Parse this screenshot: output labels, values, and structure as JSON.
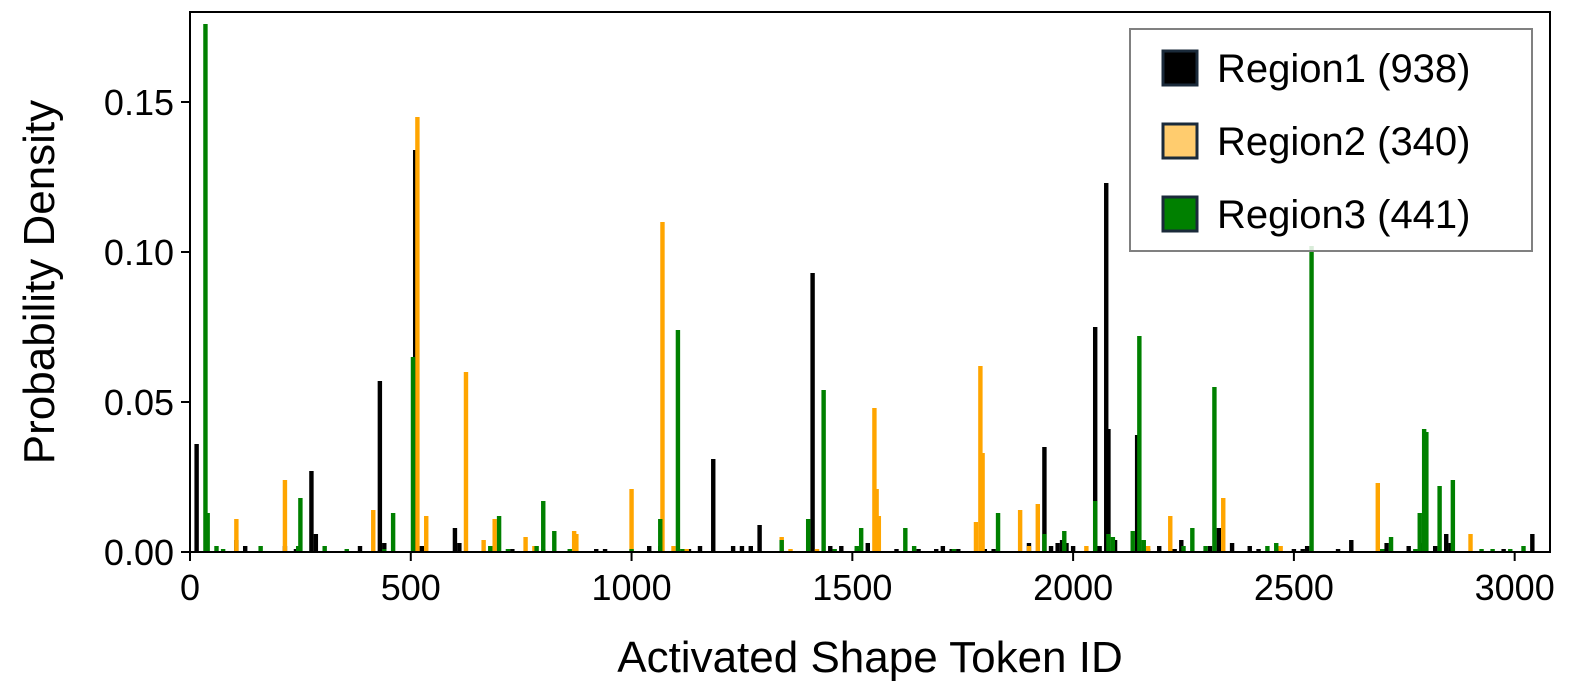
{
  "chart_data": {
    "type": "bar",
    "xlabel": "Activated Shape Token ID",
    "ylabel": "Probability Density",
    "xlim": [
      0,
      3080
    ],
    "ylim": [
      0,
      0.18
    ],
    "xticks": [
      0,
      500,
      1000,
      1500,
      2000,
      2500,
      3000
    ],
    "xtick_labels": [
      "0",
      "500",
      "1000",
      "1500",
      "2000",
      "2500",
      "3000"
    ],
    "yticks": [
      0,
      0.05,
      0.1,
      0.15
    ],
    "ytick_labels": [
      "0.00",
      "0.05",
      "0.10",
      "0.15"
    ],
    "grid": false,
    "legend_position": "top-right",
    "bar_width": 10,
    "series": [
      {
        "name": "Region1 (938)",
        "color": "#000000",
        "x": [
          15,
          105,
          125,
          215,
          240,
          275,
          285,
          385,
          430,
          440,
          510,
          525,
          600,
          610,
          730,
          800,
          920,
          940,
          1040,
          1065,
          1130,
          1155,
          1185,
          1230,
          1250,
          1270,
          1290,
          1410,
          1450,
          1475,
          1510,
          1535,
          1600,
          1650,
          1690,
          1705,
          1725,
          1740,
          1800,
          1820,
          1900,
          1935,
          1950,
          1965,
          1975,
          1985,
          2000,
          2050,
          2060,
          2075,
          2080,
          2095,
          2145,
          2170,
          2195,
          2230,
          2245,
          2310,
          2330,
          2360,
          2400,
          2420,
          2465,
          2500,
          2520,
          2530,
          2600,
          2630,
          2700,
          2710,
          2760,
          2790,
          2820,
          2845,
          2855,
          2975,
          3040
        ],
        "values": [
          0.036,
          0.004,
          0.002,
          0.002,
          0.001,
          0.027,
          0.006,
          0.002,
          0.057,
          0.003,
          0.134,
          0.002,
          0.008,
          0.003,
          0.001,
          0.001,
          0.001,
          0.001,
          0.002,
          0.002,
          0.001,
          0.002,
          0.031,
          0.002,
          0.002,
          0.002,
          0.009,
          0.093,
          0.002,
          0.002,
          0.001,
          0.003,
          0.001,
          0.001,
          0.001,
          0.002,
          0.001,
          0.001,
          0.001,
          0.001,
          0.003,
          0.035,
          0.002,
          0.003,
          0.004,
          0.003,
          0.002,
          0.075,
          0.002,
          0.123,
          0.041,
          0.004,
          0.039,
          0.001,
          0.002,
          0.001,
          0.004,
          0.002,
          0.008,
          0.003,
          0.002,
          0.001,
          0.001,
          0.001,
          0.001,
          0.002,
          0.001,
          0.004,
          0.001,
          0.003,
          0.002,
          0.003,
          0.002,
          0.006,
          0.003,
          0.001,
          0.006
        ]
      },
      {
        "name": "Region2 (340)",
        "color": "#ffa500",
        "x": [
          105,
          215,
          415,
          515,
          535,
          625,
          665,
          690,
          760,
          780,
          870,
          875,
          1000,
          1070,
          1095,
          1125,
          1340,
          1360,
          1420,
          1550,
          1555,
          1560,
          1780,
          1790,
          1795,
          1880,
          1900,
          1920,
          2030,
          2170,
          2220,
          2340,
          2470,
          2690,
          2900
        ],
        "values": [
          0.011,
          0.024,
          0.014,
          0.145,
          0.012,
          0.06,
          0.004,
          0.011,
          0.005,
          0.002,
          0.007,
          0.006,
          0.021,
          0.11,
          0.002,
          0.001,
          0.005,
          0.001,
          0.001,
          0.048,
          0.021,
          0.012,
          0.01,
          0.062,
          0.033,
          0.014,
          0.002,
          0.016,
          0.002,
          0.002,
          0.012,
          0.018,
          0.002,
          0.023,
          0.006
        ]
      },
      {
        "name": "Region3 (441)",
        "color": "#008000",
        "x": [
          35,
          40,
          60,
          75,
          160,
          245,
          250,
          305,
          355,
          440,
          460,
          505,
          680,
          700,
          720,
          785,
          800,
          825,
          860,
          1000,
          1065,
          1105,
          1115,
          1340,
          1400,
          1435,
          1460,
          1510,
          1520,
          1620,
          1640,
          1730,
          1830,
          1935,
          1980,
          2050,
          2080,
          2090,
          2135,
          2150,
          2160,
          2250,
          2270,
          2300,
          2320,
          2440,
          2460,
          2540,
          2700,
          2720,
          2775,
          2785,
          2795,
          2800,
          2830,
          2860,
          2925,
          2950,
          2990,
          3020
        ],
        "values": [
          0.176,
          0.013,
          0.002,
          0.001,
          0.002,
          0.002,
          0.018,
          0.002,
          0.001,
          0.001,
          0.013,
          0.065,
          0.002,
          0.012,
          0.001,
          0.002,
          0.017,
          0.007,
          0.001,
          0.001,
          0.011,
          0.074,
          0.001,
          0.004,
          0.011,
          0.054,
          0.001,
          0.002,
          0.008,
          0.008,
          0.002,
          0.001,
          0.013,
          0.006,
          0.007,
          0.017,
          0.006,
          0.005,
          0.007,
          0.072,
          0.004,
          0.002,
          0.008,
          0.002,
          0.055,
          0.002,
          0.003,
          0.102,
          0.001,
          0.005,
          0.001,
          0.013,
          0.041,
          0.04,
          0.022,
          0.024,
          0.001,
          0.001,
          0.001,
          0.002
        ]
      }
    ]
  }
}
